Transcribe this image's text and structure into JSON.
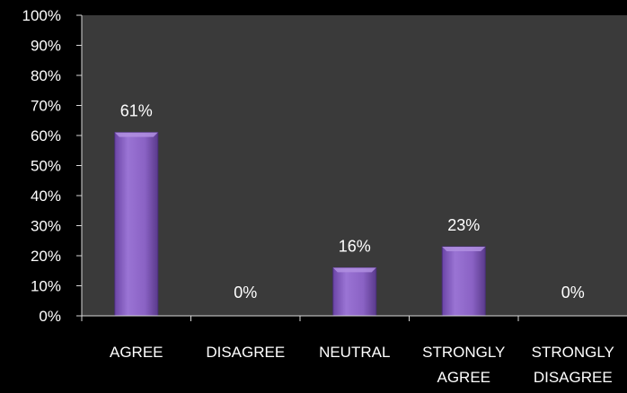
{
  "chart_data": {
    "type": "bar",
    "categories": [
      [
        "AGREE"
      ],
      [
        "DISAGREE"
      ],
      [
        "NEUTRAL"
      ],
      [
        "STRONGLY",
        "AGREE"
      ],
      [
        "STRONGLY",
        "DISAGREE"
      ]
    ],
    "values": [
      61,
      0,
      16,
      23,
      0
    ],
    "data_labels": [
      "61%",
      "0%",
      "16%",
      "23%",
      "0%"
    ],
    "ylim": [
      0,
      100
    ],
    "y_ticks": [
      0,
      10,
      20,
      30,
      40,
      50,
      60,
      70,
      80,
      90,
      100
    ],
    "y_tick_labels": [
      "0%",
      "10%",
      "20%",
      "30%",
      "40%",
      "50%",
      "60%",
      "70%",
      "80%",
      "90%",
      "100%"
    ],
    "grid": false,
    "legend": "none",
    "colors": {
      "background": "#000000",
      "plot_area": "#3a3a3a",
      "bar_fill": "#8a62c4",
      "bar_stroke": "#4b2f7a",
      "axis": "#d9d9d9",
      "text": "#ffffff"
    }
  }
}
